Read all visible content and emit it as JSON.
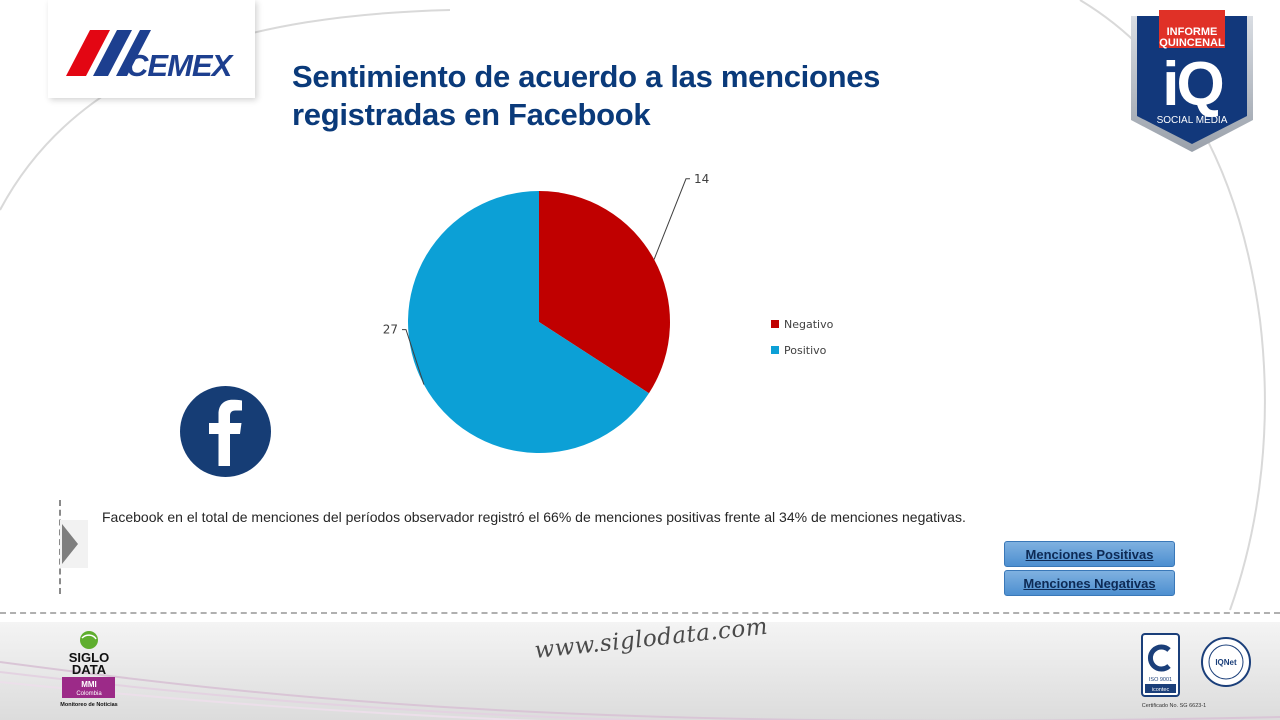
{
  "header": {
    "brand_logo": "CEMEX",
    "title": "Sentimiento de acuerdo a las menciones registradas en Facebook",
    "badge": {
      "line1": "INFORME",
      "line2": "QUINCENAL",
      "mark": "iQ",
      "caption": "SOCIAL MEDIA"
    }
  },
  "chart_data": {
    "type": "pie",
    "categories": [
      "Negativo",
      "Positivo"
    ],
    "values": [
      14,
      27
    ],
    "colors": [
      "#c00000",
      "#0ca0d6"
    ],
    "legend": {
      "position": "right",
      "entries": [
        "Negativo",
        "Positivo"
      ]
    },
    "data_labels": [
      "14",
      "27"
    ],
    "start_angle": "12 o'clock",
    "direction": "clockwise"
  },
  "social_icon": "facebook-icon",
  "description": "Facebook en el total de menciones del períodos observador registró el 66% de menciones positivas frente al 34% de menciones negativas.",
  "buttons": {
    "positive": "Menciones Positivas",
    "negative": "Menciones Negativas"
  },
  "footer": {
    "url": "www.siglodata.com",
    "siglo_logo": {
      "line1": "SIGLO",
      "line2": "DATA",
      "line3": "MMI",
      "line4": "Colombia",
      "line5": "Monitoreo de Noticias"
    },
    "certifications": {
      "iso": "ISO 9001",
      "icontec": "icontec",
      "iqnet": "IQNet",
      "cert_text": "Certificado No. SG 6623-1"
    }
  },
  "colors": {
    "title": "#0a3a7a",
    "brand_red": "#e30613",
    "brand_blue": "#1d3f8f",
    "badge_red": "#e03127",
    "badge_blue": "#12387b",
    "button_blue": "#5b9bd5",
    "facebook_blue": "#163d75"
  }
}
